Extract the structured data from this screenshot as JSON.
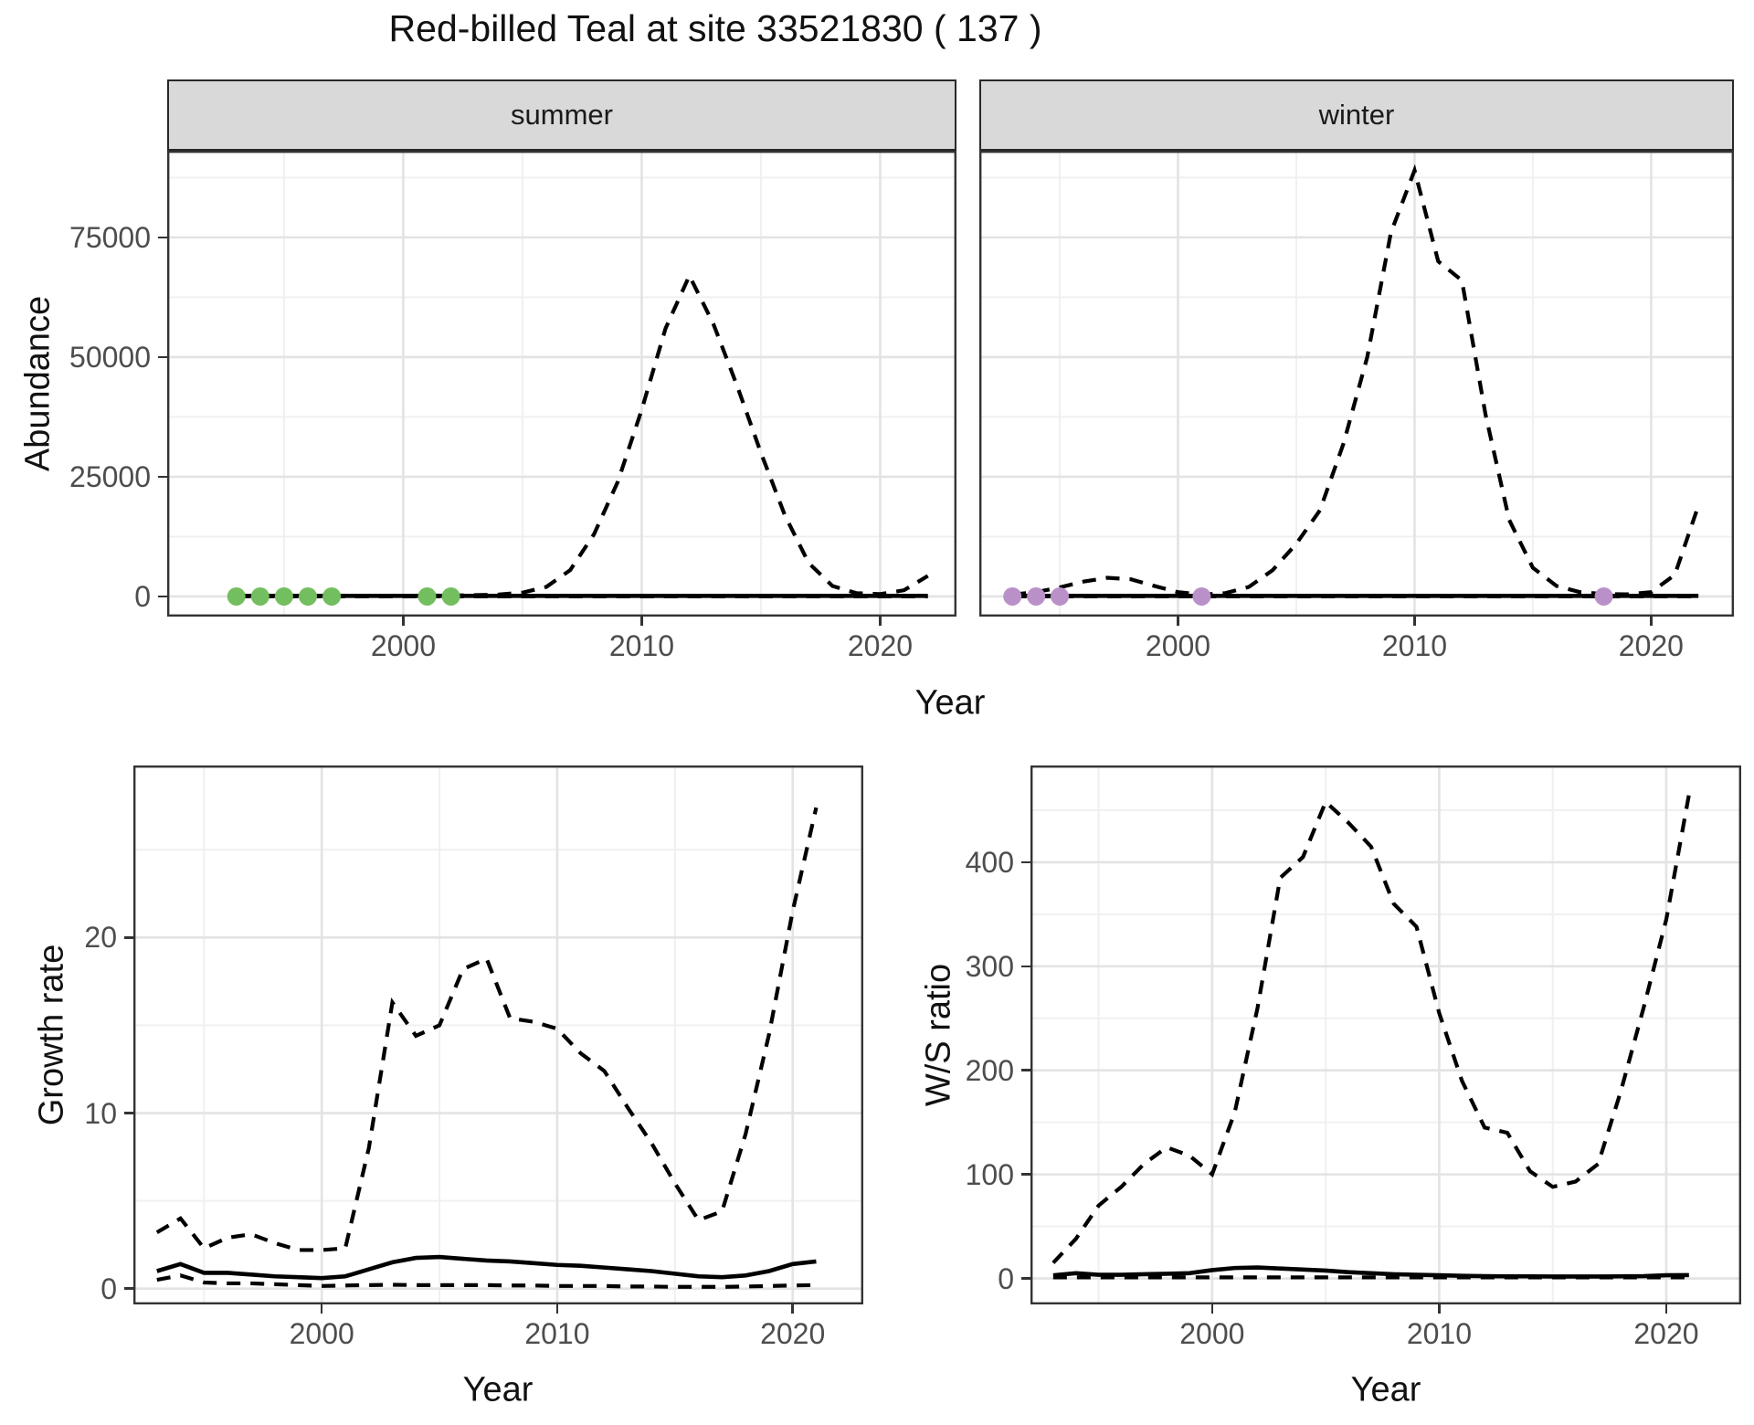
{
  "title": "Red-billed Teal at site 33521830 ( 137 )",
  "colors": {
    "line": "#000000",
    "grid_major": "#e3e3e3",
    "grid_minor": "#f0f0f0",
    "panel_border": "#333333",
    "strip_bg": "#d9d9d9",
    "tick_text": "#4d4d4d",
    "summer_points": "#73be5f",
    "winter_points": "#b991c8"
  },
  "top_figure": {
    "y_axis_title": "Abundance",
    "x_axis_title": "Year"
  },
  "chart_data": [
    {
      "id": "abundance-summer",
      "type": "line",
      "facet_label": "summer",
      "xlabel": "Year",
      "ylabel": "Abundance",
      "xlim": [
        1990.1,
        2023.2
      ],
      "ylim": [
        -4200,
        93100
      ],
      "x_ticks": [
        2000,
        2010,
        2020
      ],
      "x_minor": [
        1995,
        2005,
        2015
      ],
      "y_ticks": [
        0,
        25000,
        50000,
        75000
      ],
      "y_minor": [
        12500,
        37500,
        62500,
        87500
      ],
      "show_y_labels": true,
      "years": [
        1993,
        1994,
        1995,
        1996,
        1997,
        1998,
        1999,
        2000,
        2001,
        2002,
        2003,
        2004,
        2005,
        2006,
        2007,
        2008,
        2009,
        2010,
        2011,
        2012,
        2013,
        2014,
        2015,
        2016,
        2017,
        2018,
        2019,
        2020,
        2021,
        2022
      ],
      "series": [
        {
          "name": "upper-ci",
          "style": "dashed",
          "values": [
            150,
            200,
            160,
            150,
            140,
            120,
            110,
            130,
            180,
            220,
            280,
            400,
            800,
            2000,
            5500,
            13000,
            24000,
            39000,
            56000,
            67000,
            57000,
            44000,
            30000,
            17000,
            7000,
            2200,
            700,
            500,
            1300,
            4300
          ]
        },
        {
          "name": "estimate",
          "style": "solid",
          "values": [
            120,
            120,
            120,
            120,
            120,
            120,
            120,
            120,
            120,
            120,
            120,
            120,
            120,
            120,
            120,
            120,
            120,
            120,
            120,
            120,
            120,
            120,
            120,
            120,
            120,
            120,
            120,
            120,
            120,
            120
          ]
        },
        {
          "name": "lower-ci",
          "style": "dashed",
          "values": [
            10,
            10,
            10,
            10,
            10,
            10,
            10,
            10,
            10,
            10,
            10,
            10,
            10,
            10,
            10,
            10,
            10,
            10,
            10,
            10,
            10,
            10,
            10,
            10,
            10,
            10,
            10,
            10,
            10,
            10
          ]
        }
      ],
      "points": {
        "name": "observed-counts",
        "color_key": "summer_points",
        "x": [
          1993,
          1994,
          1995,
          1996,
          1997,
          2001,
          2002
        ],
        "y": [
          0,
          0,
          0,
          0,
          0,
          0,
          0
        ]
      }
    },
    {
      "id": "abundance-winter",
      "type": "line",
      "facet_label": "winter",
      "xlabel": "Year",
      "ylabel": "Abundance",
      "xlim": [
        1991.6,
        2023.5
      ],
      "ylim": [
        -4200,
        93100
      ],
      "x_ticks": [
        2000,
        2010,
        2020
      ],
      "x_minor": [
        1995,
        2005,
        2015
      ],
      "y_ticks": [
        0,
        25000,
        50000,
        75000
      ],
      "y_minor": [
        12500,
        37500,
        62500,
        87500
      ],
      "show_y_labels": false,
      "years": [
        1993,
        1994,
        1995,
        1996,
        1997,
        1998,
        1999,
        2000,
        2001,
        2002,
        2003,
        2004,
        2005,
        2006,
        2007,
        2008,
        2009,
        2010,
        2011,
        2012,
        2013,
        2014,
        2015,
        2016,
        2017,
        2018,
        2019,
        2020,
        2021,
        2022
      ],
      "series": [
        {
          "name": "upper-ci",
          "style": "dashed",
          "values": [
            400,
            900,
            1900,
            3100,
            3900,
            3600,
            2200,
            900,
            400,
            700,
            2000,
            5500,
            11000,
            18000,
            32000,
            50000,
            76000,
            89000,
            70000,
            66000,
            38000,
            16000,
            6000,
            2200,
            900,
            500,
            450,
            900,
            4500,
            19000
          ]
        },
        {
          "name": "estimate",
          "style": "solid",
          "values": [
            120,
            120,
            120,
            120,
            120,
            120,
            120,
            120,
            120,
            120,
            120,
            120,
            120,
            120,
            120,
            120,
            120,
            120,
            120,
            120,
            120,
            120,
            120,
            120,
            120,
            120,
            120,
            120,
            120,
            120
          ]
        },
        {
          "name": "lower-ci",
          "style": "dashed",
          "values": [
            10,
            10,
            10,
            10,
            10,
            10,
            10,
            10,
            10,
            10,
            10,
            10,
            10,
            10,
            10,
            10,
            10,
            10,
            10,
            10,
            10,
            10,
            10,
            10,
            10,
            10,
            10,
            10,
            10,
            10
          ]
        }
      ],
      "points": {
        "name": "observed-counts",
        "color_key": "winter_points",
        "x": [
          1993,
          1994,
          1995,
          2001,
          2018
        ],
        "y": [
          0,
          0,
          0,
          0,
          0
        ]
      }
    },
    {
      "id": "growth-rate",
      "type": "line",
      "facet_label": "",
      "xlabel": "Year",
      "ylabel": "Growth rate",
      "xlim": [
        1992.0,
        2023.0
      ],
      "ylim": [
        -0.9,
        29.8
      ],
      "x_ticks": [
        2000,
        2010,
        2020
      ],
      "x_minor": [
        1995,
        2005,
        2015
      ],
      "y_ticks": [
        0,
        10,
        20
      ],
      "y_minor": [
        5,
        15,
        25
      ],
      "show_y_labels": true,
      "years": [
        1993,
        1994,
        1995,
        1996,
        1997,
        1998,
        1999,
        2000,
        2001,
        2002,
        2003,
        2004,
        2005,
        2006,
        2007,
        2008,
        2009,
        2010,
        2011,
        2012,
        2013,
        2014,
        2015,
        2016,
        2017,
        2018,
        2019,
        2020,
        2021
      ],
      "series": [
        {
          "name": "upper-ci",
          "style": "dashed",
          "values": [
            3.2,
            4.0,
            2.3,
            2.9,
            3.1,
            2.6,
            2.2,
            2.2,
            2.3,
            8.0,
            16.3,
            14.4,
            15.0,
            18.2,
            18.8,
            15.4,
            15.2,
            14.8,
            13.4,
            12.4,
            10.3,
            8.3,
            6.0,
            3.9,
            4.4,
            8.8,
            14.5,
            21.5,
            27.4
          ]
        },
        {
          "name": "median",
          "style": "solid",
          "values": [
            1.0,
            1.4,
            0.9,
            0.9,
            0.8,
            0.7,
            0.65,
            0.6,
            0.7,
            1.1,
            1.5,
            1.75,
            1.8,
            1.7,
            1.6,
            1.55,
            1.45,
            1.35,
            1.3,
            1.2,
            1.1,
            1.0,
            0.85,
            0.7,
            0.65,
            0.75,
            1.0,
            1.4,
            1.55
          ]
        },
        {
          "name": "lower-ci",
          "style": "dashed",
          "values": [
            0.5,
            0.75,
            0.35,
            0.3,
            0.3,
            0.25,
            0.2,
            0.15,
            0.18,
            0.2,
            0.22,
            0.2,
            0.2,
            0.2,
            0.2,
            0.18,
            0.18,
            0.15,
            0.15,
            0.15,
            0.12,
            0.12,
            0.1,
            0.1,
            0.1,
            0.12,
            0.15,
            0.18,
            0.2
          ]
        }
      ]
    },
    {
      "id": "ws-ratio",
      "type": "line",
      "facet_label": "",
      "xlabel": "Year",
      "ylabel": "W/S ratio",
      "xlim": [
        1992.0,
        2023.3
      ],
      "ylim": [
        -25,
        493
      ],
      "x_ticks": [
        2000,
        2010,
        2020
      ],
      "x_minor": [
        1995,
        2005,
        2015
      ],
      "y_ticks": [
        0,
        100,
        200,
        300,
        400
      ],
      "y_minor": [
        50,
        150,
        250,
        350,
        450
      ],
      "show_y_labels": true,
      "years": [
        1993,
        1994,
        1995,
        1996,
        1997,
        1998,
        1999,
        2000,
        2001,
        2002,
        2003,
        2004,
        2005,
        2006,
        2007,
        2008,
        2009,
        2010,
        2011,
        2012,
        2013,
        2014,
        2015,
        2016,
        2017,
        2018,
        2019,
        2020,
        2021
      ],
      "series": [
        {
          "name": "upper-ci",
          "style": "dashed",
          "values": [
            15,
            38,
            70,
            88,
            110,
            126,
            118,
            100,
            160,
            260,
            385,
            405,
            458,
            438,
            415,
            360,
            338,
            255,
            190,
            145,
            140,
            103,
            88,
            93,
            110,
            180,
            260,
            345,
            465
          ]
        },
        {
          "name": "median",
          "style": "solid",
          "values": [
            3,
            5,
            3.5,
            3.5,
            4,
            4.5,
            5,
            8,
            10,
            10.5,
            9.5,
            8.5,
            7.5,
            6,
            5,
            4,
            3.5,
            3,
            2.5,
            2.2,
            2,
            2,
            1.8,
            1.8,
            1.8,
            2,
            2.2,
            3,
            3.2
          ]
        },
        {
          "name": "lower-ci",
          "style": "dashed",
          "values": [
            1,
            1,
            1,
            1,
            1,
            1,
            1,
            1,
            1,
            1,
            1,
            1,
            1,
            1,
            1,
            1,
            1,
            1,
            1,
            1,
            1,
            1,
            1,
            1,
            1,
            1,
            1,
            1,
            1
          ]
        }
      ]
    }
  ]
}
